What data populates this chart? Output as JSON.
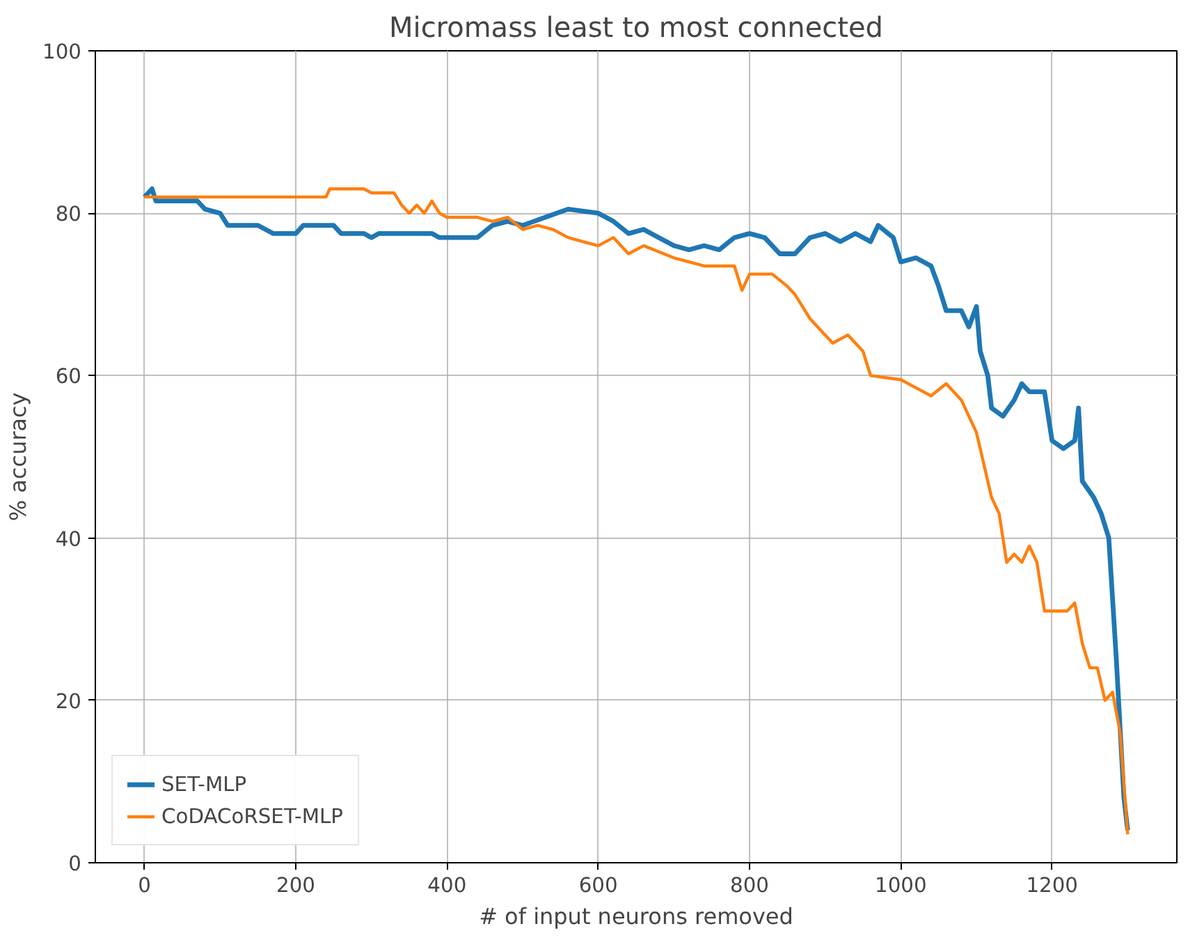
{
  "chart_data": {
    "type": "line",
    "title": "Micromass least to most connected",
    "xlabel": "# of input neurons removed",
    "ylabel": "% accuracy",
    "xlim": [
      -65,
      1365
    ],
    "ylim": [
      0,
      100
    ],
    "xticks": [
      0,
      200,
      400,
      600,
      800,
      1000,
      1200
    ],
    "yticks": [
      0,
      20,
      40,
      60,
      80,
      100
    ],
    "grid": true,
    "legend": "bottom left",
    "line_style": "solid",
    "marker": "none",
    "series": [
      {
        "name": "SET-MLP",
        "color": "#1f77b4",
        "x": [
          0,
          10,
          15,
          70,
          80,
          100,
          110,
          150,
          170,
          200,
          210,
          250,
          260,
          290,
          300,
          310,
          380,
          390,
          440,
          460,
          480,
          500,
          530,
          560,
          600,
          620,
          640,
          660,
          680,
          700,
          720,
          740,
          760,
          780,
          800,
          820,
          840,
          860,
          880,
          900,
          920,
          940,
          960,
          970,
          990,
          1000,
          1020,
          1040,
          1050,
          1060,
          1080,
          1090,
          1100,
          1105,
          1115,
          1120,
          1135,
          1150,
          1160,
          1170,
          1190,
          1200,
          1215,
          1230,
          1235,
          1240,
          1255,
          1265,
          1275,
          1285,
          1295,
          1300
        ],
        "values": [
          82,
          83,
          81.5,
          81.5,
          80.5,
          80,
          78.5,
          78.5,
          77.5,
          77.5,
          78.5,
          78.5,
          77.5,
          77.5,
          77,
          77.5,
          77.5,
          77,
          77,
          78.5,
          79,
          78.5,
          79.5,
          80.5,
          80,
          79,
          77.5,
          78,
          77,
          76,
          75.5,
          76,
          75.5,
          77,
          77.5,
          77,
          75,
          75,
          77,
          77.5,
          76.5,
          77.5,
          76.5,
          78.5,
          77,
          74,
          74.5,
          73.5,
          71,
          68,
          68,
          66,
          68.5,
          63,
          60,
          56,
          55,
          57,
          59,
          58,
          58,
          52,
          51,
          52,
          56,
          47,
          45,
          43,
          40,
          25,
          8,
          4
        ]
      },
      {
        "name": "CoDACoRSET-MLP",
        "color": "#ff7f0e",
        "x": [
          0,
          240,
          245,
          290,
          300,
          330,
          340,
          350,
          360,
          370,
          380,
          390,
          400,
          440,
          460,
          480,
          500,
          520,
          540,
          560,
          580,
          600,
          620,
          640,
          660,
          700,
          720,
          740,
          780,
          790,
          800,
          830,
          850,
          860,
          870,
          880,
          890,
          910,
          930,
          950,
          960,
          1000,
          1020,
          1040,
          1060,
          1080,
          1100,
          1110,
          1120,
          1130,
          1140,
          1150,
          1160,
          1170,
          1180,
          1190,
          1220,
          1230,
          1240,
          1250,
          1260,
          1270,
          1280,
          1290,
          1300
        ],
        "values": [
          82,
          82,
          83,
          83,
          82.5,
          82.5,
          81,
          80,
          81,
          80,
          81.5,
          80,
          79.5,
          79.5,
          79,
          79.5,
          78,
          78.5,
          78,
          77,
          76.5,
          76,
          77,
          75,
          76,
          74.5,
          74,
          73.5,
          73.5,
          70.5,
          72.5,
          72.5,
          71,
          70,
          68.5,
          67,
          66,
          64,
          65,
          63,
          60,
          59.5,
          58.5,
          57.5,
          59,
          57,
          53,
          49,
          45,
          43,
          37,
          38,
          37,
          39,
          37,
          31,
          31,
          32,
          27,
          24,
          24,
          20,
          21,
          16,
          3.5
        ]
      }
    ]
  }
}
